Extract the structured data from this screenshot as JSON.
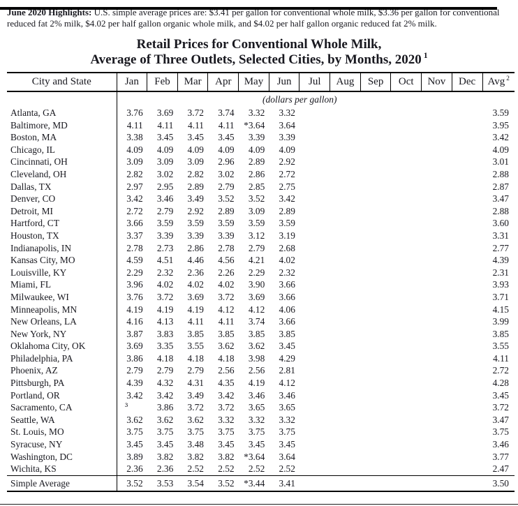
{
  "page": {
    "highlights_label": "June 2020 Highlights:",
    "highlights_text": " U.S. simple average prices are: $3.41 per gallon for conventional whole milk, $3.36 per gallon for conventional reduced fat 2% milk, $4.02 per half gallon organic whole milk, and $4.02 per half gallon organic reduced fat 2% milk.",
    "title_line1": "Retail Prices for Conventional Whole Milk,",
    "title_line2": "Average of Three Outlets, Selected Cities, by Months, 2020",
    "title_footnote": "1"
  },
  "table": {
    "unit_note": "(dollars per gallon)",
    "columns": [
      "City and State",
      "Jan",
      "Feb",
      "Mar",
      "Apr",
      "May",
      "Jun",
      "Jul",
      "Aug",
      "Sep",
      "Oct",
      "Nov",
      "Dec",
      "Avg"
    ],
    "avg_footnote": "2",
    "rows": [
      {
        "city": "Atlanta, GA",
        "values": [
          "3.76",
          "3.69",
          "3.72",
          "3.74",
          "3.32",
          "3.32",
          "",
          "",
          "",
          "",
          "",
          "",
          "3.59"
        ]
      },
      {
        "city": "Baltimore, MD",
        "values": [
          "4.11",
          "4.11",
          "4.11",
          "4.11",
          "*3.64",
          "3.64",
          "",
          "",
          "",
          "",
          "",
          "",
          "3.95"
        ]
      },
      {
        "city": "Boston, MA",
        "values": [
          "3.38",
          "3.45",
          "3.45",
          "3.45",
          "3.39",
          "3.39",
          "",
          "",
          "",
          "",
          "",
          "",
          "3.42"
        ]
      },
      {
        "city": "Chicago, IL",
        "values": [
          "4.09",
          "4.09",
          "4.09",
          "4.09",
          "4.09",
          "4.09",
          "",
          "",
          "",
          "",
          "",
          "",
          "4.09"
        ]
      },
      {
        "city": "Cincinnati, OH",
        "values": [
          "3.09",
          "3.09",
          "3.09",
          "2.96",
          "2.89",
          "2.92",
          "",
          "",
          "",
          "",
          "",
          "",
          "3.01"
        ]
      },
      {
        "city": "Cleveland, OH",
        "values": [
          "2.82",
          "3.02",
          "2.82",
          "3.02",
          "2.86",
          "2.72",
          "",
          "",
          "",
          "",
          "",
          "",
          "2.88"
        ]
      },
      {
        "city": "Dallas, TX",
        "values": [
          "2.97",
          "2.95",
          "2.89",
          "2.79",
          "2.85",
          "2.75",
          "",
          "",
          "",
          "",
          "",
          "",
          "2.87"
        ]
      },
      {
        "city": "Denver, CO",
        "values": [
          "3.42",
          "3.46",
          "3.49",
          "3.52",
          "3.52",
          "3.42",
          "",
          "",
          "",
          "",
          "",
          "",
          "3.47"
        ]
      },
      {
        "city": "Detroit, MI",
        "values": [
          "2.72",
          "2.79",
          "2.92",
          "2.89",
          "3.09",
          "2.89",
          "",
          "",
          "",
          "",
          "",
          "",
          "2.88"
        ]
      },
      {
        "city": "Hartford, CT",
        "values": [
          "3.66",
          "3.59",
          "3.59",
          "3.59",
          "3.59",
          "3.59",
          "",
          "",
          "",
          "",
          "",
          "",
          "3.60"
        ]
      },
      {
        "city": "Houston, TX",
        "values": [
          "3.37",
          "3.39",
          "3.39",
          "3.39",
          "3.12",
          "3.19",
          "",
          "",
          "",
          "",
          "",
          "",
          "3.31"
        ]
      },
      {
        "city": "Indianapolis, IN",
        "values": [
          "2.78",
          "2.73",
          "2.86",
          "2.78",
          "2.79",
          "2.68",
          "",
          "",
          "",
          "",
          "",
          "",
          "2.77"
        ]
      },
      {
        "city": "Kansas City, MO",
        "values": [
          "4.59",
          "4.51",
          "4.46",
          "4.56",
          "4.21",
          "4.02",
          "",
          "",
          "",
          "",
          "",
          "",
          "4.39"
        ]
      },
      {
        "city": "Louisville, KY",
        "values": [
          "2.29",
          "2.32",
          "2.36",
          "2.26",
          "2.29",
          "2.32",
          "",
          "",
          "",
          "",
          "",
          "",
          "2.31"
        ]
      },
      {
        "city": "Miami, FL",
        "values": [
          "3.96",
          "4.02",
          "4.02",
          "4.02",
          "3.90",
          "3.66",
          "",
          "",
          "",
          "",
          "",
          "",
          "3.93"
        ]
      },
      {
        "city": "Milwaukee, WI",
        "values": [
          "3.76",
          "3.72",
          "3.69",
          "3.72",
          "3.69",
          "3.66",
          "",
          "",
          "",
          "",
          "",
          "",
          "3.71"
        ]
      },
      {
        "city": "Minneapolis, MN",
        "values": [
          "4.19",
          "4.19",
          "4.19",
          "4.12",
          "4.12",
          "4.06",
          "",
          "",
          "",
          "",
          "",
          "",
          "4.15"
        ]
      },
      {
        "city": "New Orleans, LA",
        "values": [
          "4.16",
          "4.13",
          "4.11",
          "4.11",
          "3.74",
          "3.66",
          "",
          "",
          "",
          "",
          "",
          "",
          "3.99"
        ]
      },
      {
        "city": "New York, NY",
        "values": [
          "3.87",
          "3.83",
          "3.85",
          "3.85",
          "3.85",
          "3.85",
          "",
          "",
          "",
          "",
          "",
          "",
          "3.85"
        ]
      },
      {
        "city": "Oklahoma City, OK",
        "values": [
          "3.69",
          "3.35",
          "3.55",
          "3.62",
          "3.62",
          "3.45",
          "",
          "",
          "",
          "",
          "",
          "",
          "3.55"
        ]
      },
      {
        "city": "Philadelphia, PA",
        "values": [
          "3.86",
          "4.18",
          "4.18",
          "4.18",
          "3.98",
          "4.29",
          "",
          "",
          "",
          "",
          "",
          "",
          "4.11"
        ]
      },
      {
        "city": "Phoenix, AZ",
        "values": [
          "2.79",
          "2.79",
          "2.79",
          "2.56",
          "2.56",
          "2.81",
          "",
          "",
          "",
          "",
          "",
          "",
          "2.72"
        ]
      },
      {
        "city": "Pittsburgh, PA",
        "values": [
          "4.39",
          "4.32",
          "4.31",
          "4.35",
          "4.19",
          "4.12",
          "",
          "",
          "",
          "",
          "",
          "",
          "4.28"
        ]
      },
      {
        "city": "Portland, OR",
        "values": [
          "3.42",
          "3.42",
          "3.49",
          "3.42",
          "3.46",
          "3.46",
          "",
          "",
          "",
          "",
          "",
          "",
          "3.45"
        ]
      },
      {
        "city": "Sacramento, CA",
        "values": [
          "³",
          "3.86",
          "3.72",
          "3.72",
          "3.65",
          "3.65",
          "",
          "",
          "",
          "",
          "",
          "",
          "3.72"
        ]
      },
      {
        "city": "Seattle, WA",
        "values": [
          "3.62",
          "3.62",
          "3.62",
          "3.32",
          "3.32",
          "3.32",
          "",
          "",
          "",
          "",
          "",
          "",
          "3.47"
        ]
      },
      {
        "city": "St. Louis, MO",
        "values": [
          "3.75",
          "3.75",
          "3.75",
          "3.75",
          "3.75",
          "3.75",
          "",
          "",
          "",
          "",
          "",
          "",
          "3.75"
        ]
      },
      {
        "city": "Syracuse, NY",
        "values": [
          "3.45",
          "3.45",
          "3.48",
          "3.45",
          "3.45",
          "3.45",
          "",
          "",
          "",
          "",
          "",
          "",
          "3.46"
        ]
      },
      {
        "city": "Washington, DC",
        "values": [
          "3.89",
          "3.82",
          "3.82",
          "3.82",
          "*3.64",
          "3.64",
          "",
          "",
          "",
          "",
          "",
          "",
          "3.77"
        ]
      },
      {
        "city": "Wichita, KS",
        "values": [
          "2.36",
          "2.36",
          "2.52",
          "2.52",
          "2.52",
          "2.52",
          "",
          "",
          "",
          "",
          "",
          "",
          "2.47"
        ]
      }
    ],
    "footer_row": {
      "city": "Simple Average",
      "values": [
        "3.52",
        "3.53",
        "3.54",
        "3.52",
        "*3.44",
        "3.41",
        "",
        "",
        "",
        "",
        "",
        "",
        "3.50"
      ]
    }
  },
  "colors": {
    "text": "#18181f",
    "rule": "#000000",
    "top_bar": "#050505"
  }
}
